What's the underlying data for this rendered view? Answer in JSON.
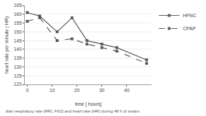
{
  "chart_data": {
    "type": "line",
    "x": [
      0,
      5,
      12,
      18,
      24,
      30,
      36,
      48
    ],
    "series": [
      {
        "name": "HFNC",
        "color": "#555555",
        "line_style": "solid",
        "marker": "square",
        "values": [
          161,
          159,
          150,
          158,
          145,
          143,
          141,
          134
        ]
      },
      {
        "name": "CPAP",
        "color": "#555555",
        "line_style": "dashed",
        "marker": "square",
        "values": [
          156,
          158,
          145,
          146,
          143,
          141,
          139,
          132
        ]
      }
    ],
    "xlabel": "time [ hours]",
    "ylabel": "heart rate per minute ( HR)",
    "xlim": [
      -1,
      50
    ],
    "xticks": [
      0,
      10,
      20,
      30,
      40
    ],
    "ylim": [
      120,
      165
    ],
    "yticks": [
      120,
      125,
      130,
      135,
      140,
      145,
      150,
      155,
      160,
      165
    ],
    "grid": "y",
    "legend": "right",
    "caption": "dian respiratory rate (RR), FiO2 and heart rate (HR) during 48 h of treatm"
  }
}
